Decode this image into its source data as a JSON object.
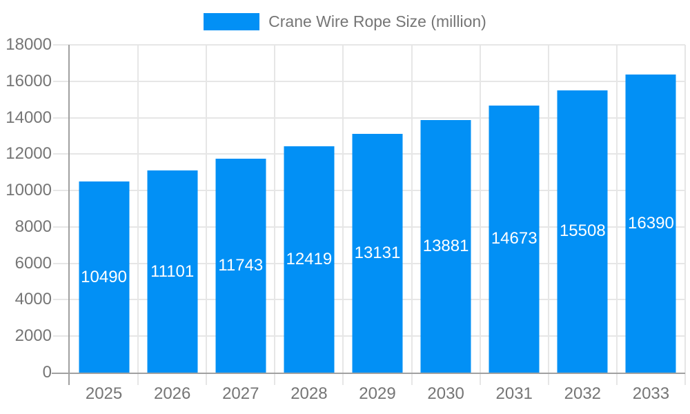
{
  "colors": {
    "bar": "#0290f5",
    "grid": "#e6e6e6",
    "axis": "#a0a0a0",
    "label": "#757575",
    "value_label": "#ffffff",
    "background": "#ffffff"
  },
  "chart_data": {
    "type": "bar",
    "title": "Crane Wire Rope Size (million)",
    "categories": [
      "2025",
      "2026",
      "2027",
      "2028",
      "2029",
      "2030",
      "2031",
      "2032",
      "2033"
    ],
    "values": [
      10490,
      11101,
      11743,
      12419,
      13131,
      13881,
      14673,
      15508,
      16390
    ],
    "xlabel": "",
    "ylabel": "",
    "ylim": [
      0,
      18000
    ],
    "yticks": [
      0,
      2000,
      4000,
      6000,
      8000,
      10000,
      12000,
      14000,
      16000,
      18000
    ],
    "grid": true,
    "legend_position": "top",
    "value_label_position": "inside-center"
  }
}
